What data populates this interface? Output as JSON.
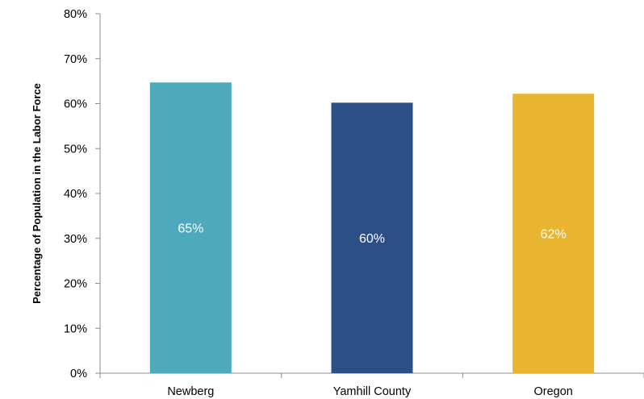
{
  "chart_data": {
    "type": "bar",
    "title": "",
    "xlabel": "",
    "ylabel": "Percentage of Population in the Labor Force",
    "categories": [
      "Newberg",
      "Yamhill County",
      "Oregon"
    ],
    "values": [
      64.7,
      60.2,
      62.2
    ],
    "data_labels": [
      "65%",
      "60%",
      "62%"
    ],
    "colors": [
      "#4fa9bc",
      "#2c4f88",
      "#e9b530"
    ],
    "ylim": [
      0,
      80
    ],
    "yticks": [
      0,
      10,
      20,
      30,
      40,
      50,
      60,
      70,
      80
    ],
    "ytick_labels": [
      "0%",
      "10%",
      "20%",
      "30%",
      "40%",
      "50%",
      "60%",
      "70%",
      "80%"
    ],
    "grid": false,
    "legend": "none"
  }
}
